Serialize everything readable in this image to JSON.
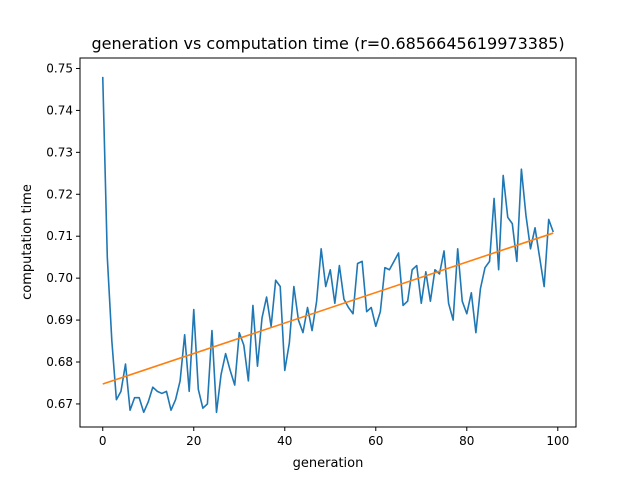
{
  "chart_data": {
    "type": "line",
    "title": "generation vs computation time (r=0.6856645619973385)",
    "xlabel": "generation",
    "ylabel": "computation time",
    "xlim": [
      -5,
      104
    ],
    "ylim": [
      0.6645,
      0.7525
    ],
    "x_ticks": [
      0,
      20,
      40,
      60,
      80,
      100
    ],
    "y_ticks": [
      0.67,
      0.68,
      0.69,
      0.7,
      0.71,
      0.72,
      0.73,
      0.74,
      0.75
    ],
    "x_tick_labels": [
      "0",
      "20",
      "40",
      "60",
      "80",
      "100"
    ],
    "y_tick_labels": [
      "0.67",
      "0.68",
      "0.69",
      "0.70",
      "0.71",
      "0.72",
      "0.73",
      "0.74",
      "0.75"
    ],
    "grid": false,
    "colors": {
      "series": "#1f77b4",
      "fit": "#ff7f0e"
    },
    "series": [
      {
        "x": [
          0,
          1,
          2,
          3,
          4,
          5,
          6,
          7,
          8,
          9,
          10,
          11,
          12,
          13,
          14,
          15,
          16,
          17,
          18,
          19,
          20,
          21,
          22,
          23,
          24,
          25,
          26,
          27,
          28,
          29,
          30,
          31,
          32,
          33,
          34,
          35,
          36,
          37,
          38,
          39,
          40,
          41,
          42,
          43,
          44,
          45,
          46,
          47,
          48,
          49,
          50,
          51,
          52,
          53,
          54,
          55,
          56,
          57,
          58,
          59,
          60,
          61,
          62,
          63,
          64,
          65,
          66,
          67,
          68,
          69,
          70,
          71,
          72,
          73,
          74,
          75,
          76,
          77,
          78,
          79,
          80,
          81,
          82,
          83,
          84,
          85,
          86,
          87,
          88,
          89,
          90,
          91,
          92,
          93,
          94,
          95,
          96,
          97,
          98,
          99
        ],
        "values": [
          0.748,
          0.705,
          0.685,
          0.671,
          0.673,
          0.6795,
          0.6685,
          0.6715,
          0.6715,
          0.668,
          0.6705,
          0.674,
          0.673,
          0.6725,
          0.673,
          0.6685,
          0.671,
          0.6755,
          0.6865,
          0.673,
          0.6925,
          0.6735,
          0.669,
          0.67,
          0.6875,
          0.668,
          0.677,
          0.682,
          0.678,
          0.6745,
          0.687,
          0.684,
          0.6755,
          0.6935,
          0.679,
          0.6905,
          0.6955,
          0.6885,
          0.6995,
          0.698,
          0.678,
          0.6845,
          0.698,
          0.69,
          0.687,
          0.693,
          0.6875,
          0.6945,
          0.707,
          0.698,
          0.702,
          0.694,
          0.703,
          0.695,
          0.693,
          0.6915,
          0.7035,
          0.704,
          0.692,
          0.693,
          0.6885,
          0.692,
          0.7025,
          0.702,
          0.704,
          0.706,
          0.6935,
          0.6945,
          0.702,
          0.703,
          0.694,
          0.7015,
          0.6945,
          0.702,
          0.701,
          0.7065,
          0.694,
          0.69,
          0.707,
          0.6945,
          0.6915,
          0.6965,
          0.687,
          0.6975,
          0.7025,
          0.704,
          0.719,
          0.702,
          0.7245,
          0.7145,
          0.713,
          0.704,
          0.726,
          0.715,
          0.707,
          0.712,
          0.705,
          0.698,
          0.714,
          0.711
        ]
      },
      {
        "x": [
          0,
          99
        ],
        "values": [
          0.67475,
          0.71075
        ]
      }
    ]
  }
}
